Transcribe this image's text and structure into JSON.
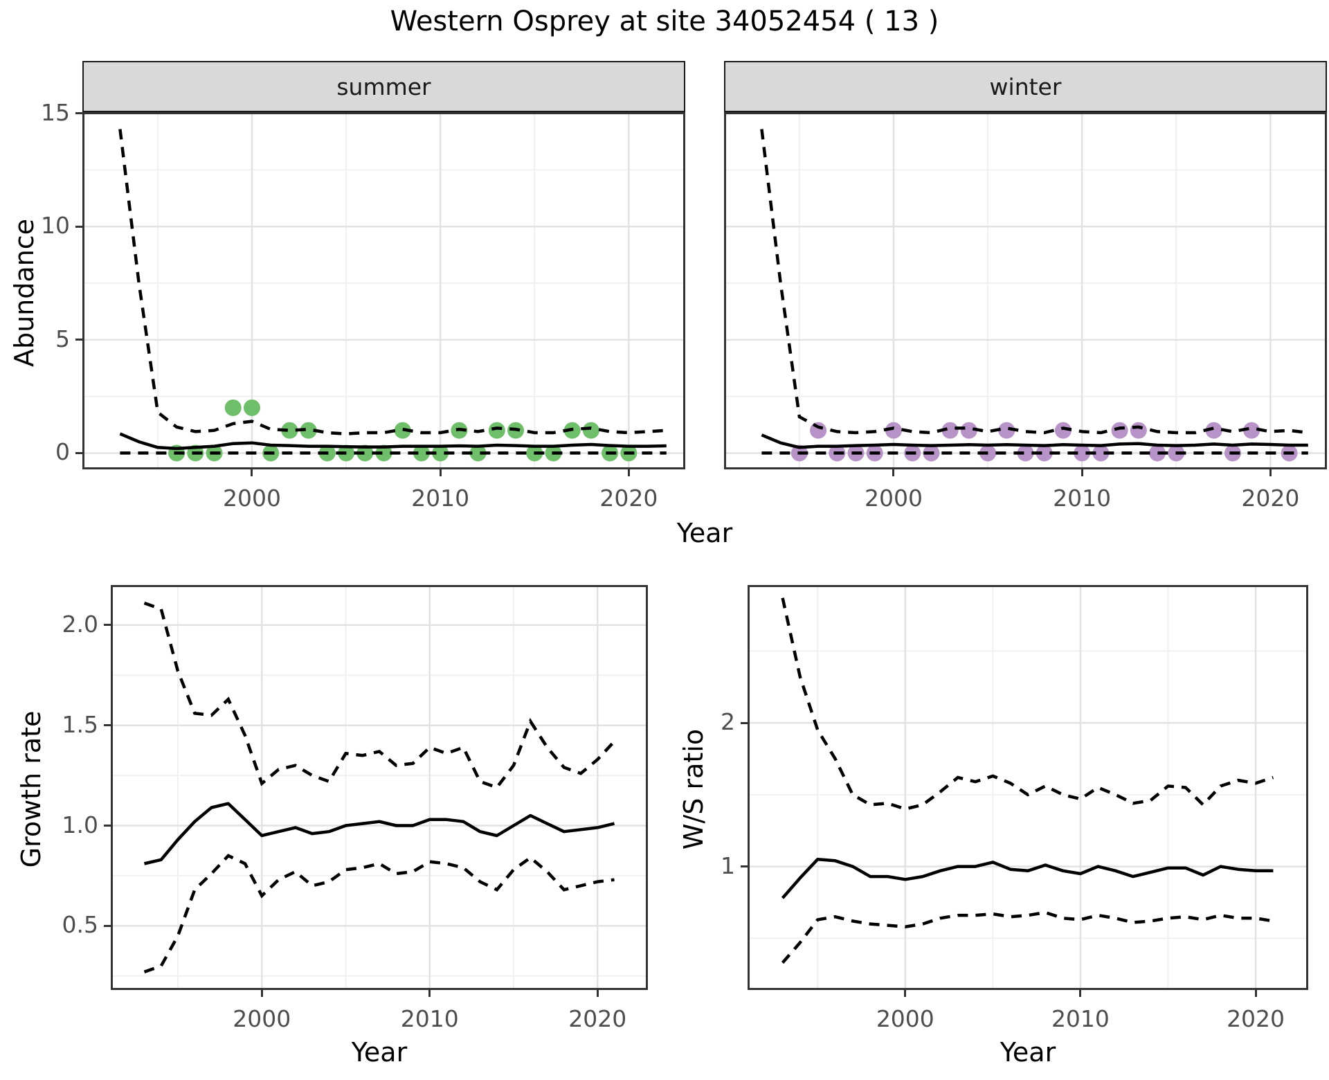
{
  "title": "Western Osprey at site 34052454 ( 13 )",
  "top_chart": {
    "facets": [
      {
        "label": "summer"
      },
      {
        "label": "winter"
      }
    ],
    "y_axis_title": "Abundance",
    "x_axis_title": "Year"
  },
  "bottom_left_chart": {
    "y_axis_title": "Growth rate",
    "x_axis_title": "Year"
  },
  "bottom_right_chart": {
    "y_axis_title": "W/S ratio",
    "x_axis_title": "Year"
  },
  "colors": {
    "summer_points": "#6ebe6a",
    "winter_points": "#b793c8",
    "line": "#000000",
    "strip_bg": "#d9d9d9",
    "panel_border": "#333333",
    "grid_major": "#e2e2e2",
    "grid_minor": "#f0f0f0",
    "tick_text": "#4d4d4d"
  },
  "chart_data": [
    {
      "id": "abundance_summer",
      "type": "line",
      "facet": "summer",
      "x_domain": [
        1991,
        2023
      ],
      "y_domain": [
        -0.72,
        15.05
      ],
      "x_ticks": [
        2000,
        2010,
        2020
      ],
      "x_tick_labels": [
        "2000",
        "2010",
        "2020"
      ],
      "x_minor": [
        1995,
        2005,
        2015
      ],
      "y_ticks": [
        0,
        5,
        10,
        15
      ],
      "y_tick_labels": [
        "0",
        "5",
        "10",
        "15"
      ],
      "y_minor": [
        2.5,
        7.5,
        12.5
      ],
      "years": [
        1993,
        1994,
        1995,
        1996,
        1997,
        1998,
        1999,
        2000,
        2001,
        2002,
        2003,
        2004,
        2005,
        2006,
        2007,
        2008,
        2009,
        2010,
        2011,
        2012,
        2013,
        2014,
        2015,
        2016,
        2017,
        2018,
        2019,
        2020,
        2021,
        2022
      ],
      "upper_ci": [
        14.3,
        7.5,
        1.8,
        1.15,
        0.95,
        1.0,
        1.3,
        1.4,
        1.05,
        1.0,
        1.05,
        0.9,
        0.85,
        0.9,
        0.9,
        1.05,
        0.9,
        0.9,
        1.05,
        0.95,
        1.1,
        1.05,
        0.9,
        0.9,
        1.05,
        1.1,
        0.95,
        0.9,
        0.95,
        1.0
      ],
      "median": [
        0.85,
        0.5,
        0.25,
        0.2,
        0.25,
        0.3,
        0.42,
        0.45,
        0.35,
        0.33,
        0.3,
        0.3,
        0.28,
        0.27,
        0.27,
        0.3,
        0.3,
        0.3,
        0.32,
        0.3,
        0.35,
        0.33,
        0.3,
        0.3,
        0.35,
        0.38,
        0.33,
        0.3,
        0.3,
        0.32
      ],
      "lower_ci": [
        0,
        0,
        0,
        0,
        0,
        0,
        0,
        0,
        0,
        0,
        0,
        0,
        0,
        0,
        0,
        0,
        0,
        0,
        0,
        0,
        0,
        0,
        0,
        0,
        0,
        0,
        0,
        0,
        0,
        0
      ],
      "points": {
        "x": [
          1996,
          1997,
          1998,
          1999,
          2000,
          2001,
          2002,
          2003,
          2004,
          2005,
          2006,
          2007,
          2008,
          2009,
          2010,
          2011,
          2012,
          2013,
          2014,
          2015,
          2016,
          2017,
          2018,
          2019,
          2020
        ],
        "y": [
          0,
          0,
          0,
          2,
          2,
          0,
          1,
          1,
          0,
          0,
          0,
          0,
          1,
          0,
          0,
          1,
          0,
          1,
          1,
          0,
          0,
          1,
          1,
          0,
          0
        ],
        "color": "#6ebe6a"
      }
    },
    {
      "id": "abundance_winter",
      "type": "line",
      "facet": "winter",
      "x_domain": [
        1991,
        2023
      ],
      "y_domain": [
        -0.72,
        15.05
      ],
      "x_ticks": [
        2000,
        2010,
        2020
      ],
      "x_tick_labels": [
        "2000",
        "2010",
        "2020"
      ],
      "x_minor": [
        1995,
        2005,
        2015
      ],
      "y_ticks": [
        0,
        5,
        10,
        15
      ],
      "y_tick_labels": [
        "0",
        "5",
        "10",
        "15"
      ],
      "y_minor": [
        2.5,
        7.5,
        12.5
      ],
      "years": [
        1993,
        1994,
        1995,
        1996,
        1997,
        1998,
        1999,
        2000,
        2001,
        2002,
        2003,
        2004,
        2005,
        2006,
        2007,
        2008,
        2009,
        2010,
        2011,
        2012,
        2013,
        2014,
        2015,
        2016,
        2017,
        2018,
        2019,
        2020,
        2021,
        2022
      ],
      "upper_ci": [
        14.3,
        7.5,
        1.6,
        1.15,
        0.95,
        0.9,
        0.95,
        1.1,
        0.95,
        0.9,
        1.1,
        1.1,
        0.95,
        1.1,
        0.95,
        0.9,
        1.1,
        0.95,
        0.9,
        1.1,
        1.15,
        0.95,
        0.9,
        0.9,
        1.1,
        0.95,
        1.1,
        0.95,
        1.0,
        0.9
      ],
      "median": [
        0.8,
        0.45,
        0.25,
        0.3,
        0.3,
        0.33,
        0.35,
        0.38,
        0.35,
        0.33,
        0.35,
        0.37,
        0.35,
        0.37,
        0.35,
        0.33,
        0.37,
        0.35,
        0.33,
        0.4,
        0.42,
        0.35,
        0.33,
        0.35,
        0.4,
        0.35,
        0.4,
        0.38,
        0.35,
        0.35
      ],
      "lower_ci": [
        0,
        0,
        0,
        0,
        0,
        0,
        0,
        0,
        0,
        0,
        0,
        0,
        0,
        0,
        0,
        0,
        0,
        0,
        0,
        0,
        0,
        0,
        0,
        0,
        0,
        0,
        0,
        0,
        0,
        0
      ],
      "points": {
        "x": [
          1995,
          1996,
          1997,
          1998,
          1999,
          2000,
          2001,
          2002,
          2003,
          2004,
          2005,
          2006,
          2007,
          2008,
          2009,
          2010,
          2011,
          2012,
          2013,
          2014,
          2015,
          2017,
          2018,
          2019,
          2021
        ],
        "y": [
          0,
          1,
          0,
          0,
          0,
          1,
          0,
          0,
          1,
          1,
          0,
          1,
          0,
          0,
          1,
          0,
          0,
          1,
          1,
          0,
          0,
          1,
          0,
          1,
          0
        ],
        "color": "#b793c8"
      }
    },
    {
      "id": "growth_rate",
      "type": "line",
      "x_domain": [
        1991,
        2023
      ],
      "y_domain": [
        0.18,
        2.2
      ],
      "x_ticks": [
        2000,
        2010,
        2020
      ],
      "x_tick_labels": [
        "2000",
        "2010",
        "2020"
      ],
      "x_minor": [
        1995,
        2005,
        2015
      ],
      "y_ticks": [
        0.5,
        1.0,
        1.5,
        2.0
      ],
      "y_tick_labels": [
        "0.5",
        "1.0",
        "1.5",
        "2.0"
      ],
      "y_minor": [
        0.25,
        0.75,
        1.25,
        1.75
      ],
      "years": [
        1993,
        1994,
        1995,
        1996,
        1997,
        1998,
        1999,
        2000,
        2001,
        2002,
        2003,
        2004,
        2005,
        2006,
        2007,
        2008,
        2009,
        2010,
        2011,
        2012,
        2013,
        2014,
        2015,
        2016,
        2017,
        2018,
        2019,
        2020,
        2021
      ],
      "upper_ci": [
        2.11,
        2.08,
        1.77,
        1.56,
        1.55,
        1.63,
        1.45,
        1.21,
        1.28,
        1.3,
        1.25,
        1.22,
        1.36,
        1.35,
        1.37,
        1.3,
        1.31,
        1.39,
        1.36,
        1.39,
        1.22,
        1.19,
        1.3,
        1.52,
        1.39,
        1.29,
        1.26,
        1.33,
        1.42
      ],
      "median": [
        0.81,
        0.83,
        0.93,
        1.02,
        1.09,
        1.11,
        1.03,
        0.95,
        0.97,
        0.99,
        0.96,
        0.97,
        1.0,
        1.01,
        1.02,
        1.0,
        1.0,
        1.03,
        1.03,
        1.02,
        0.97,
        0.95,
        1.0,
        1.05,
        1.01,
        0.97,
        0.98,
        0.99,
        1.01
      ],
      "lower_ci": [
        0.27,
        0.3,
        0.45,
        0.68,
        0.76,
        0.85,
        0.81,
        0.65,
        0.73,
        0.77,
        0.7,
        0.72,
        0.78,
        0.79,
        0.81,
        0.76,
        0.77,
        0.82,
        0.81,
        0.79,
        0.72,
        0.68,
        0.78,
        0.84,
        0.77,
        0.68,
        0.7,
        0.72,
        0.73
      ]
    },
    {
      "id": "ws_ratio",
      "type": "line",
      "x_domain": [
        1991,
        2023
      ],
      "y_domain": [
        0.14,
        2.96
      ],
      "x_ticks": [
        2000,
        2010,
        2020
      ],
      "x_tick_labels": [
        "2000",
        "2010",
        "2020"
      ],
      "x_minor": [
        1995,
        2005,
        2015
      ],
      "y_ticks": [
        1,
        2
      ],
      "y_tick_labels": [
        "1",
        "2"
      ],
      "y_minor": [
        0.5,
        1.5,
        2.5
      ],
      "years": [
        1993,
        1994,
        1995,
        1996,
        1997,
        1998,
        1999,
        2000,
        2001,
        2002,
        2003,
        2004,
        2005,
        2006,
        2007,
        2008,
        2009,
        2010,
        2011,
        2012,
        2013,
        2014,
        2015,
        2016,
        2017,
        2018,
        2019,
        2020,
        2021
      ],
      "upper_ci": [
        2.87,
        2.32,
        1.95,
        1.75,
        1.5,
        1.43,
        1.44,
        1.4,
        1.43,
        1.52,
        1.62,
        1.59,
        1.63,
        1.58,
        1.5,
        1.56,
        1.5,
        1.47,
        1.55,
        1.5,
        1.44,
        1.46,
        1.56,
        1.55,
        1.43,
        1.56,
        1.6,
        1.58,
        1.62
      ],
      "median": [
        0.78,
        0.92,
        1.05,
        1.04,
        1.0,
        0.93,
        0.93,
        0.91,
        0.93,
        0.97,
        1.0,
        1.0,
        1.03,
        0.98,
        0.97,
        1.01,
        0.97,
        0.95,
        1.0,
        0.97,
        0.93,
        0.96,
        0.99,
        0.99,
        0.94,
        1.0,
        0.98,
        0.97,
        0.97
      ],
      "lower_ci": [
        0.33,
        0.47,
        0.63,
        0.65,
        0.62,
        0.6,
        0.59,
        0.58,
        0.6,
        0.64,
        0.66,
        0.66,
        0.67,
        0.65,
        0.66,
        0.68,
        0.64,
        0.63,
        0.66,
        0.64,
        0.61,
        0.62,
        0.64,
        0.65,
        0.63,
        0.66,
        0.64,
        0.64,
        0.62
      ]
    }
  ]
}
